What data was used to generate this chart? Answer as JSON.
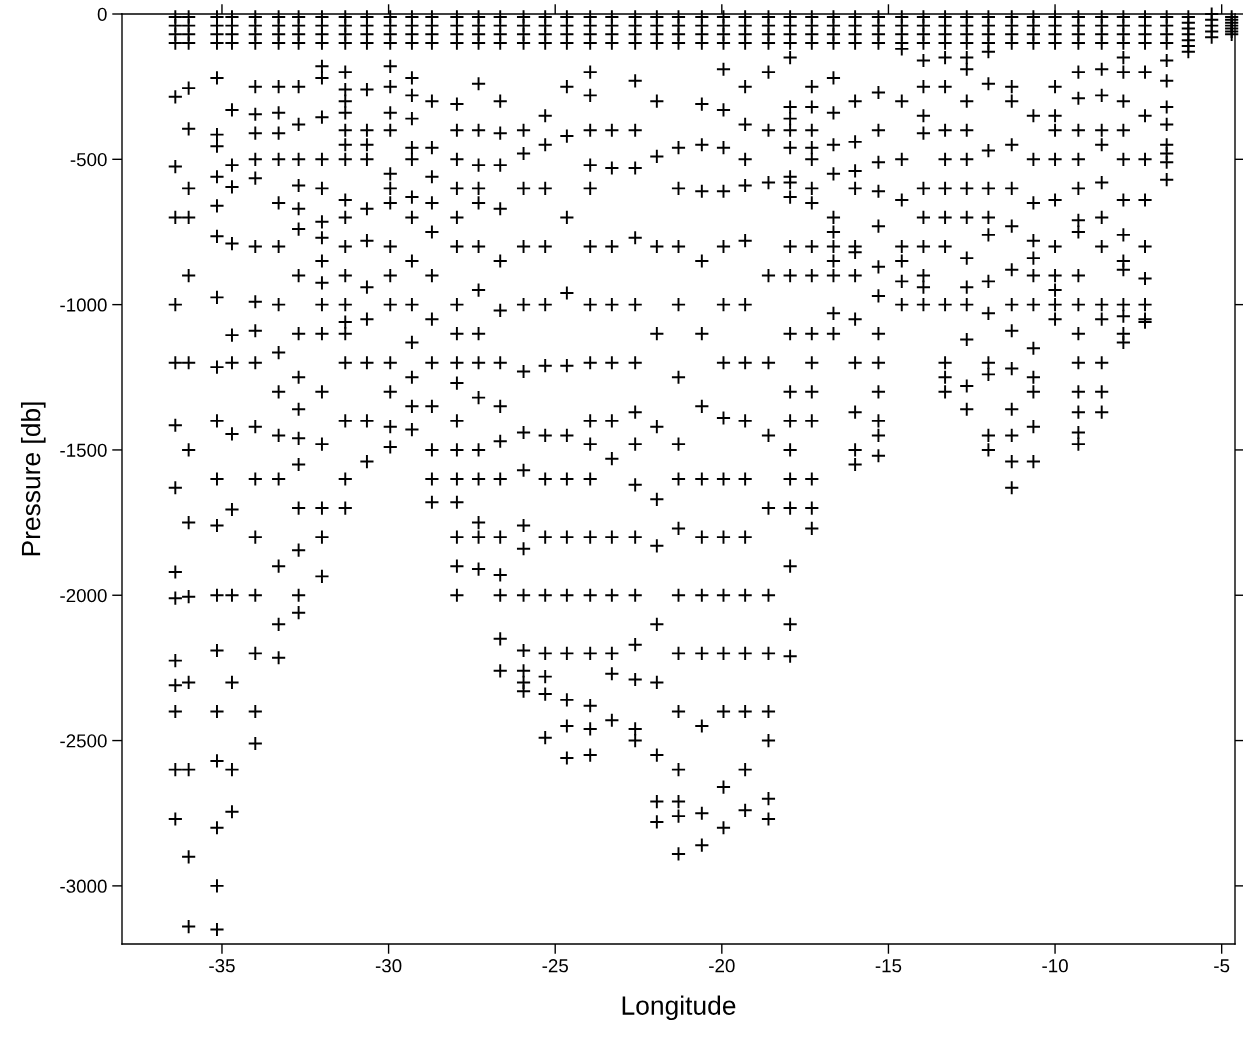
{
  "chart_data": {
    "type": "scatter",
    "xlabel": "Longitude",
    "ylabel": "Pressure [db]",
    "xlim": [
      -38,
      -4.6
    ],
    "ylim": [
      -3200,
      0
    ],
    "xticks": [
      -35,
      -30,
      -25,
      -20,
      -15,
      -10,
      -5
    ],
    "yticks": [
      0,
      -500,
      -1000,
      -1500,
      -2000,
      -2500,
      -3000
    ],
    "grid": false,
    "marker": "cross",
    "series": [
      {
        "color": "#000000",
        "x": [
          -36.4,
          -36.4,
          -36.4,
          -36.4,
          -36.4,
          -36.4,
          -36.4,
          -36.4,
          -36.4,
          -36.4,
          -36.4,
          -36.4,
          -36.4,
          -36.4,
          -36.4,
          -36.4,
          -36.4,
          -36.4
        ],
        "values": [
          -10,
          -40,
          -70,
          -100,
          -285,
          -525,
          -700,
          -1000,
          -1200,
          -1415,
          -1630,
          -1920,
          -2010,
          -2225,
          -2310,
          -2400,
          -2600,
          -2770
        ]
      },
      {
        "color": "#000000",
        "x": [
          -36.0,
          -36.0,
          -36.0,
          -36.0,
          -36.0,
          -36.0,
          -36.0,
          -36.0,
          -36.0,
          -36.0,
          -36.0,
          -36.0,
          -36.0,
          -36.0,
          -36.0,
          -36.0,
          -36.0
        ],
        "values": [
          -10,
          -40,
          -70,
          -100,
          -255,
          -395,
          -600,
          -700,
          -900,
          -1200,
          -1500,
          -1750,
          -2005,
          -2300,
          -2600,
          -2900,
          -3140
        ]
      },
      {
        "color": "#000000",
        "x": [
          -35.15,
          -35.15,
          -35.15,
          -35.15,
          -35.15,
          -35.15,
          -35.15,
          -35.15,
          -35.15,
          -35.15,
          -35.15,
          -35.15,
          -35.15,
          -35.15,
          -35.15,
          -35.15,
          -35.15,
          -35.15,
          -35.15,
          -35.15,
          -35.15,
          -35.15
        ],
        "values": [
          -10,
          -40,
          -70,
          -100,
          -220,
          -415,
          -455,
          -560,
          -660,
          -765,
          -975,
          -1215,
          -1400,
          -1600,
          -1760,
          -2000,
          -2190,
          -2400,
          -2570,
          -2800,
          -3000,
          -3150
        ]
      },
      {
        "color": "#000000",
        "x": [
          -34.7,
          -34.7,
          -34.7,
          -34.7,
          -34.7,
          -34.7,
          -34.7,
          -34.7,
          -34.7,
          -34.7,
          -34.7,
          -34.7,
          -34.7,
          -34.7,
          -34.7,
          -34.7
        ],
        "values": [
          -10,
          -40,
          -70,
          -100,
          -330,
          -520,
          -595,
          -790,
          -1105,
          -1200,
          -1445,
          -1705,
          -2000,
          -2300,
          -2600,
          -2745
        ]
      },
      {
        "color": "#000000",
        "x": [
          -34.0,
          -34.0,
          -34.0,
          -34.0,
          -34.0,
          -34.0,
          -34.0,
          -34.0,
          -34.0,
          -34.0,
          -34.0,
          -34.0,
          -34.0,
          -34.0,
          -34.0,
          -34.0,
          -34.0,
          -34.0,
          -34.0,
          -34.0
        ],
        "values": [
          -10,
          -40,
          -70,
          -100,
          -250,
          -345,
          -410,
          -500,
          -565,
          -800,
          -990,
          -1090,
          -1200,
          -1420,
          -1600,
          -1800,
          -2000,
          -2200,
          -2400,
          -2510
        ]
      },
      {
        "color": "#000000",
        "x": [
          -33.3,
          -33.3,
          -33.3,
          -33.3,
          -33.3,
          -33.3,
          -33.3,
          -33.3,
          -33.3,
          -33.3,
          -33.3,
          -33.3,
          -33.3,
          -33.3,
          -33.3,
          -33.3,
          -33.3,
          -33.3
        ],
        "values": [
          -10,
          -40,
          -70,
          -100,
          -250,
          -340,
          -410,
          -500,
          -650,
          -800,
          -1000,
          -1165,
          -1300,
          -1450,
          -1600,
          -1900,
          -2100,
          -2215
        ]
      },
      {
        "color": "#000000",
        "x": [
          -32.7,
          -32.7,
          -32.7,
          -32.7,
          -32.7,
          -32.7,
          -32.7,
          -32.7,
          -32.7,
          -32.7,
          -32.7,
          -32.7,
          -32.7,
          -32.7,
          -32.7,
          -32.7,
          -32.7,
          -32.7,
          -32.7,
          -32.7
        ],
        "values": [
          -10,
          -40,
          -70,
          -100,
          -250,
          -380,
          -500,
          -590,
          -670,
          -740,
          -900,
          -1100,
          -1250,
          -1360,
          -1460,
          -1550,
          -1700,
          -1845,
          -2000,
          -2060
        ]
      },
      {
        "color": "#000000",
        "x": [
          -32.0,
          -32.0,
          -32.0,
          -32.0,
          -32.0,
          -32.0,
          -32.0,
          -32.0,
          -32.0,
          -32.0,
          -32.0,
          -32.0,
          -32.0,
          -32.0,
          -32.0,
          -32.0,
          -32.0,
          -32.0,
          -32.0,
          -32.0
        ],
        "values": [
          -10,
          -40,
          -70,
          -100,
          -180,
          -220,
          -355,
          -500,
          -600,
          -715,
          -770,
          -850,
          -925,
          -1000,
          -1100,
          -1300,
          -1480,
          -1700,
          -1800,
          -1935
        ]
      },
      {
        "color": "#000000",
        "x": [
          -31.3,
          -31.3,
          -31.3,
          -31.3,
          -31.3,
          -31.3,
          -31.3,
          -31.3,
          -31.3,
          -31.3,
          -31.3,
          -31.3,
          -31.3,
          -31.3,
          -31.3,
          -31.3,
          -31.3,
          -31.3,
          -31.3,
          -31.3,
          -31.3,
          -31.3
        ],
        "values": [
          -10,
          -40,
          -70,
          -100,
          -200,
          -260,
          -300,
          -340,
          -400,
          -450,
          -500,
          -640,
          -700,
          -800,
          -900,
          -1000,
          -1060,
          -1100,
          -1200,
          -1400,
          -1600,
          -1700
        ]
      },
      {
        "color": "#000000",
        "x": [
          -30.65,
          -30.65,
          -30.65,
          -30.65,
          -30.65,
          -30.65,
          -30.65,
          -30.65,
          -30.65,
          -30.65,
          -30.65,
          -30.65,
          -30.65,
          -30.65,
          -30.65
        ],
        "values": [
          -10,
          -40,
          -70,
          -100,
          -260,
          -400,
          -450,
          -500,
          -670,
          -780,
          -940,
          -1050,
          -1200,
          -1400,
          -1540
        ]
      },
      {
        "color": "#000000",
        "x": [
          -29.95,
          -29.95,
          -29.95,
          -29.95,
          -29.95,
          -29.95,
          -29.95,
          -29.95,
          -29.95,
          -29.95,
          -29.95,
          -29.95,
          -29.95,
          -29.95,
          -29.95,
          -29.95,
          -29.95,
          -29.95
        ],
        "values": [
          -10,
          -40,
          -70,
          -100,
          -180,
          -250,
          -340,
          -400,
          -550,
          -600,
          -650,
          -800,
          -900,
          -1000,
          -1200,
          -1300,
          -1420,
          -1490
        ]
      },
      {
        "color": "#000000",
        "x": [
          -29.3,
          -29.3,
          -29.3,
          -29.3,
          -29.3,
          -29.3,
          -29.3,
          -29.3,
          -29.3,
          -29.3,
          -29.3,
          -29.3,
          -29.3,
          -29.3,
          -29.3,
          -29.3,
          -29.3
        ],
        "values": [
          -10,
          -40,
          -70,
          -100,
          -220,
          -280,
          -360,
          -460,
          -500,
          -630,
          -700,
          -850,
          -1000,
          -1130,
          -1250,
          -1350,
          -1430
        ]
      },
      {
        "color": "#000000",
        "x": [
          -28.7,
          -28.7,
          -28.7,
          -28.7,
          -28.7,
          -28.7,
          -28.7,
          -28.7,
          -28.7,
          -28.7,
          -28.7,
          -28.7,
          -28.7,
          -28.7,
          -28.7,
          -28.7
        ],
        "values": [
          -10,
          -40,
          -70,
          -100,
          -300,
          -460,
          -560,
          -650,
          -750,
          -900,
          -1050,
          -1200,
          -1350,
          -1500,
          -1600,
          -1680
        ]
      },
      {
        "color": "#000000",
        "x": [
          -27.95,
          -27.95,
          -27.95,
          -27.95,
          -27.95,
          -27.95,
          -27.95,
          -27.95,
          -27.95,
          -27.95,
          -27.95,
          -27.95,
          -27.95,
          -27.95,
          -27.95,
          -27.95,
          -27.95,
          -27.95,
          -27.95,
          -27.95,
          -27.95
        ],
        "values": [
          -10,
          -40,
          -70,
          -100,
          -310,
          -400,
          -500,
          -600,
          -700,
          -800,
          -1000,
          -1100,
          -1200,
          -1270,
          -1400,
          -1500,
          -1600,
          -1680,
          -1800,
          -1900,
          -2000
        ]
      },
      {
        "color": "#000000",
        "x": [
          -27.3,
          -27.3,
          -27.3,
          -27.3,
          -27.3,
          -27.3,
          -27.3,
          -27.3,
          -27.3,
          -27.3,
          -27.3,
          -27.3,
          -27.3,
          -27.3,
          -27.3,
          -27.3,
          -27.3,
          -27.3,
          -27.3
        ],
        "values": [
          -10,
          -40,
          -70,
          -100,
          -240,
          -400,
          -520,
          -600,
          -650,
          -800,
          -950,
          -1100,
          -1200,
          -1320,
          -1500,
          -1600,
          -1750,
          -1800,
          -1910
        ]
      },
      {
        "color": "#000000",
        "x": [
          -26.65,
          -26.65,
          -26.65,
          -26.65,
          -26.65,
          -26.65,
          -26.65,
          -26.65,
          -26.65,
          -26.65,
          -26.65,
          -26.65,
          -26.65,
          -26.65,
          -26.65,
          -26.65,
          -26.65,
          -26.65,
          -26.65
        ],
        "values": [
          -10,
          -40,
          -70,
          -100,
          -300,
          -410,
          -520,
          -670,
          -850,
          -1020,
          -1200,
          -1350,
          -1470,
          -1600,
          -1800,
          -1930,
          -2000,
          -2150,
          -2260
        ]
      },
      {
        "color": "#000000",
        "x": [
          -25.95,
          -25.95,
          -25.95,
          -25.95,
          -25.95,
          -25.95,
          -25.95,
          -25.95,
          -25.95,
          -25.95,
          -25.95,
          -25.95,
          -25.95,
          -25.95,
          -25.95,
          -25.95,
          -25.95,
          -25.95,
          -25.95
        ],
        "values": [
          -10,
          -40,
          -70,
          -100,
          -400,
          -480,
          -600,
          -800,
          -1000,
          -1230,
          -1440,
          -1570,
          -1760,
          -1840,
          -2000,
          -2190,
          -2260,
          -2300,
          -2330
        ]
      },
      {
        "color": "#000000",
        "x": [
          -25.3,
          -25.3,
          -25.3,
          -25.3,
          -25.3,
          -25.3,
          -25.3,
          -25.3,
          -25.3,
          -25.3,
          -25.3,
          -25.3,
          -25.3,
          -25.3,
          -25.3,
          -25.3,
          -25.3,
          -25.3
        ],
        "values": [
          -10,
          -40,
          -70,
          -100,
          -350,
          -450,
          -600,
          -800,
          -1000,
          -1210,
          -1450,
          -1600,
          -1800,
          -2000,
          -2200,
          -2280,
          -2340,
          -2490
        ]
      },
      {
        "color": "#000000",
        "x": [
          -24.65,
          -24.65,
          -24.65,
          -24.65,
          -24.65,
          -24.65,
          -24.65,
          -24.65,
          -24.65,
          -24.65,
          -24.65,
          -24.65,
          -24.65,
          -24.65,
          -24.65,
          -24.65,
          -24.65
        ],
        "values": [
          -10,
          -40,
          -70,
          -100,
          -250,
          -420,
          -700,
          -960,
          -1210,
          -1450,
          -1600,
          -1800,
          -2000,
          -2200,
          -2360,
          -2450,
          -2560
        ]
      },
      {
        "color": "#000000",
        "x": [
          -23.95,
          -23.95,
          -23.95,
          -23.95,
          -23.95,
          -23.95,
          -23.95,
          -23.95,
          -23.95,
          -23.95,
          -23.95,
          -23.95,
          -23.95,
          -23.95,
          -23.95,
          -23.95,
          -23.95,
          -23.95,
          -23.95,
          -23.95,
          -23.95
        ],
        "values": [
          -10,
          -40,
          -70,
          -100,
          -200,
          -280,
          -400,
          -520,
          -600,
          -800,
          -1000,
          -1200,
          -1400,
          -1480,
          -1600,
          -1800,
          -2000,
          -2200,
          -2380,
          -2460,
          -2550
        ]
      },
      {
        "color": "#000000",
        "x": [
          -23.3,
          -23.3,
          -23.3,
          -23.3,
          -23.3,
          -23.3,
          -23.3,
          -23.3,
          -23.3,
          -23.3,
          -23.3,
          -23.3,
          -23.3,
          -23.3,
          -23.3,
          -23.3
        ],
        "values": [
          -10,
          -40,
          -70,
          -100,
          -400,
          -530,
          -800,
          -1000,
          -1200,
          -1400,
          -1530,
          -1800,
          -2000,
          -2200,
          -2270,
          -2430
        ]
      },
      {
        "color": "#000000",
        "x": [
          -22.6,
          -22.6,
          -22.6,
          -22.6,
          -22.6,
          -22.6,
          -22.6,
          -22.6,
          -22.6,
          -22.6,
          -22.6,
          -22.6,
          -22.6,
          -22.6,
          -22.6,
          -22.6,
          -22.6,
          -22.6,
          -22.6
        ],
        "values": [
          -10,
          -40,
          -70,
          -100,
          -230,
          -400,
          -530,
          -770,
          -1000,
          -1200,
          -1370,
          -1480,
          -1620,
          -1800,
          -2000,
          -2170,
          -2290,
          -2460,
          -2500
        ]
      },
      {
        "color": "#000000",
        "x": [
          -21.95,
          -21.95,
          -21.95,
          -21.95,
          -21.95,
          -21.95,
          -21.95,
          -21.95,
          -21.95,
          -21.95,
          -21.95,
          -21.95,
          -21.95,
          -21.95,
          -21.95,
          -21.95
        ],
        "values": [
          -10,
          -40,
          -70,
          -100,
          -300,
          -490,
          -800,
          -1100,
          -1420,
          -1670,
          -1830,
          -2100,
          -2300,
          -2550,
          -2710,
          -2780
        ]
      },
      {
        "color": "#000000",
        "x": [
          -21.3,
          -21.3,
          -21.3,
          -21.3,
          -21.3,
          -21.3,
          -21.3,
          -21.3,
          -21.3,
          -21.3,
          -21.3,
          -21.3,
          -21.3,
          -21.3,
          -21.3,
          -21.3,
          -21.3,
          -21.3,
          -21.3
        ],
        "values": [
          -10,
          -40,
          -70,
          -100,
          -460,
          -600,
          -800,
          -1000,
          -1250,
          -1480,
          -1600,
          -1770,
          -2000,
          -2200,
          -2400,
          -2600,
          -2710,
          -2760,
          -2890
        ]
      },
      {
        "color": "#000000",
        "x": [
          -20.6,
          -20.6,
          -20.6,
          -20.6,
          -20.6,
          -20.6,
          -20.6,
          -20.6,
          -20.6,
          -20.6,
          -20.6,
          -20.6,
          -20.6,
          -20.6,
          -20.6,
          -20.6,
          -20.6
        ],
        "values": [
          -10,
          -40,
          -70,
          -100,
          -310,
          -450,
          -610,
          -850,
          -1100,
          -1350,
          -1600,
          -1800,
          -2000,
          -2200,
          -2450,
          -2750,
          -2860
        ]
      },
      {
        "color": "#000000",
        "x": [
          -19.95,
          -19.95,
          -19.95,
          -19.95,
          -19.95,
          -19.95,
          -19.95,
          -19.95,
          -19.95,
          -19.95,
          -19.95,
          -19.95,
          -19.95,
          -19.95,
          -19.95,
          -19.95,
          -19.95,
          -19.95,
          -19.95
        ],
        "values": [
          -10,
          -40,
          -70,
          -100,
          -190,
          -330,
          -460,
          -610,
          -800,
          -1000,
          -1200,
          -1390,
          -1600,
          -1800,
          -2000,
          -2200,
          -2400,
          -2660,
          -2800
        ]
      },
      {
        "color": "#000000",
        "x": [
          -19.3,
          -19.3,
          -19.3,
          -19.3,
          -19.3,
          -19.3,
          -19.3,
          -19.3,
          -19.3,
          -19.3,
          -19.3,
          -19.3,
          -19.3,
          -19.3,
          -19.3,
          -19.3,
          -19.3,
          -19.3,
          -19.3
        ],
        "values": [
          -10,
          -40,
          -70,
          -100,
          -250,
          -380,
          -500,
          -590,
          -780,
          -1000,
          -1200,
          -1400,
          -1600,
          -1800,
          -2000,
          -2200,
          -2400,
          -2600,
          -2740
        ]
      },
      {
        "color": "#000000",
        "x": [
          -18.6,
          -18.6,
          -18.6,
          -18.6,
          -18.6,
          -18.6,
          -18.6,
          -18.6,
          -18.6,
          -18.6,
          -18.6,
          -18.6,
          -18.6,
          -18.6,
          -18.6,
          -18.6,
          -18.6
        ],
        "values": [
          -10,
          -40,
          -70,
          -100,
          -200,
          -400,
          -580,
          -900,
          -1200,
          -1450,
          -1700,
          -2000,
          -2200,
          -2400,
          -2500,
          -2700,
          -2770
        ]
      },
      {
        "color": "#000000",
        "x": [
          -17.95,
          -17.95,
          -17.95,
          -17.95,
          -17.95,
          -17.95,
          -17.95,
          -17.95,
          -17.95,
          -17.95,
          -17.95,
          -17.95,
          -17.95,
          -17.95,
          -17.95,
          -17.95,
          -17.95,
          -17.95,
          -17.95,
          -17.95,
          -17.95,
          -17.95,
          -17.95
        ],
        "values": [
          -10,
          -40,
          -70,
          -100,
          -150,
          -320,
          -360,
          -400,
          -460,
          -560,
          -580,
          -630,
          -800,
          -900,
          -1100,
          -1300,
          -1400,
          -1500,
          -1600,
          -1700,
          -1900,
          -2100,
          -2210
        ]
      },
      {
        "color": "#000000",
        "x": [
          -17.3,
          -17.3,
          -17.3,
          -17.3,
          -17.3,
          -17.3,
          -17.3,
          -17.3,
          -17.3,
          -17.3,
          -17.3,
          -17.3,
          -17.3,
          -17.3,
          -17.3,
          -17.3,
          -17.3,
          -17.3,
          -17.3,
          -17.3
        ],
        "values": [
          -10,
          -40,
          -70,
          -100,
          -250,
          -320,
          -400,
          -460,
          -500,
          -600,
          -650,
          -800,
          -900,
          -1100,
          -1200,
          -1300,
          -1400,
          -1600,
          -1700,
          -1770
        ]
      },
      {
        "color": "#000000",
        "x": [
          -16.65,
          -16.65,
          -16.65,
          -16.65,
          -16.65,
          -16.65,
          -16.65,
          -16.65,
          -16.65,
          -16.65,
          -16.65,
          -16.65,
          -16.65,
          -16.65,
          -16.65
        ],
        "values": [
          -10,
          -40,
          -70,
          -100,
          -220,
          -340,
          -450,
          -550,
          -700,
          -750,
          -800,
          -850,
          -900,
          -1030,
          -1100
        ]
      },
      {
        "color": "#000000",
        "x": [
          -16.0,
          -16.0,
          -16.0,
          -16.0,
          -16.0,
          -16.0,
          -16.0,
          -16.0,
          -16.0,
          -16.0,
          -16.0,
          -16.0,
          -16.0,
          -16.0,
          -16.0,
          -16.0
        ],
        "values": [
          -10,
          -40,
          -70,
          -100,
          -300,
          -440,
          -540,
          -600,
          -800,
          -820,
          -900,
          -1050,
          -1200,
          -1370,
          -1500,
          -1550
        ]
      },
      {
        "color": "#000000",
        "x": [
          -15.3,
          -15.3,
          -15.3,
          -15.3,
          -15.3,
          -15.3,
          -15.3,
          -15.3,
          -15.3,
          -15.3,
          -15.3,
          -15.3,
          -15.3,
          -15.3,
          -15.3,
          -15.3,
          -15.3
        ],
        "values": [
          -10,
          -40,
          -70,
          -100,
          -270,
          -400,
          -510,
          -610,
          -730,
          -870,
          -970,
          -1100,
          -1200,
          -1300,
          -1400,
          -1450,
          -1520
        ]
      },
      {
        "color": "#000000",
        "x": [
          -14.6,
          -14.6,
          -14.6,
          -14.6,
          -14.6,
          -14.6,
          -14.6,
          -14.6,
          -14.6,
          -14.6,
          -14.6,
          -14.6
        ],
        "values": [
          -10,
          -40,
          -70,
          -100,
          -120,
          -300,
          -500,
          -640,
          -800,
          -850,
          -920,
          -1000
        ]
      },
      {
        "color": "#000000",
        "x": [
          -13.95,
          -13.95,
          -13.95,
          -13.95,
          -13.95,
          -13.95,
          -13.95,
          -13.95,
          -13.95,
          -13.95,
          -13.95,
          -13.95,
          -13.95,
          -13.95
        ],
        "values": [
          -10,
          -40,
          -70,
          -100,
          -160,
          -250,
          -350,
          -410,
          -600,
          -700,
          -800,
          -900,
          -940,
          -1000
        ]
      },
      {
        "color": "#000000",
        "x": [
          -13.3,
          -13.3,
          -13.3,
          -13.3,
          -13.3,
          -13.3,
          -13.3,
          -13.3,
          -13.3,
          -13.3,
          -13.3,
          -13.3,
          -13.3,
          -13.3,
          -13.3
        ],
        "values": [
          -10,
          -40,
          -70,
          -100,
          -150,
          -250,
          -400,
          -500,
          -600,
          -700,
          -800,
          -1000,
          -1200,
          -1250,
          -1300
        ]
      },
      {
        "color": "#000000",
        "x": [
          -12.65,
          -12.65,
          -12.65,
          -12.65,
          -12.65,
          -12.65,
          -12.65,
          -12.65,
          -12.65,
          -12.65,
          -12.65,
          -12.65,
          -12.65,
          -12.65,
          -12.65,
          -12.65,
          -12.65
        ],
        "values": [
          -10,
          -40,
          -70,
          -100,
          -150,
          -190,
          -300,
          -400,
          -500,
          -600,
          -700,
          -840,
          -940,
          -1000,
          -1120,
          -1280,
          -1360
        ]
      },
      {
        "color": "#000000",
        "x": [
          -12.0,
          -12.0,
          -12.0,
          -12.0,
          -12.0,
          -12.0,
          -12.0,
          -12.0,
          -12.0,
          -12.0,
          -12.0,
          -12.0,
          -12.0,
          -12.0,
          -12.0,
          -12.0
        ],
        "values": [
          -10,
          -40,
          -70,
          -100,
          -130,
          -240,
          -470,
          -600,
          -700,
          -760,
          -920,
          -1030,
          -1200,
          -1240,
          -1450,
          -1500
        ]
      },
      {
        "color": "#000000",
        "x": [
          -11.3,
          -11.3,
          -11.3,
          -11.3,
          -11.3,
          -11.3,
          -11.3,
          -11.3,
          -11.3,
          -11.3,
          -11.3,
          -11.3,
          -11.3,
          -11.3,
          -11.3,
          -11.3,
          -11.3
        ],
        "values": [
          -10,
          -40,
          -70,
          -100,
          -250,
          -300,
          -450,
          -600,
          -730,
          -880,
          -1000,
          -1090,
          -1220,
          -1360,
          -1450,
          -1540,
          -1630
        ]
      },
      {
        "color": "#000000",
        "x": [
          -10.65,
          -10.65,
          -10.65,
          -10.65,
          -10.65,
          -10.65,
          -10.65,
          -10.65,
          -10.65,
          -10.65,
          -10.65,
          -10.65,
          -10.65,
          -10.65,
          -10.65,
          -10.65
        ],
        "values": [
          -10,
          -40,
          -70,
          -100,
          -350,
          -500,
          -650,
          -780,
          -840,
          -900,
          -1000,
          -1150,
          -1250,
          -1300,
          -1420,
          -1540
        ]
      },
      {
        "color": "#000000",
        "x": [
          -10.0,
          -10.0,
          -10.0,
          -10.0,
          -10.0,
          -10.0,
          -10.0,
          -10.0,
          -10.0,
          -10.0,
          -10.0,
          -10.0,
          -10.0,
          -10.0
        ],
        "values": [
          -10,
          -40,
          -70,
          -100,
          -250,
          -350,
          -400,
          -500,
          -640,
          -800,
          -900,
          -950,
          -1000,
          -1050
        ]
      },
      {
        "color": "#000000",
        "x": [
          -9.3,
          -9.3,
          -9.3,
          -9.3,
          -9.3,
          -9.3,
          -9.3,
          -9.3,
          -9.3,
          -9.3,
          -9.3,
          -9.3,
          -9.3,
          -9.3,
          -9.3,
          -9.3,
          -9.3,
          -9.3,
          -9.3
        ],
        "values": [
          -10,
          -40,
          -70,
          -100,
          -200,
          -290,
          -400,
          -500,
          -600,
          -710,
          -750,
          -900,
          -1000,
          -1100,
          -1200,
          -1300,
          -1370,
          -1440,
          -1480
        ]
      },
      {
        "color": "#000000",
        "x": [
          -8.6,
          -8.6,
          -8.6,
          -8.6,
          -8.6,
          -8.6,
          -8.6,
          -8.6,
          -8.6,
          -8.6,
          -8.6,
          -8.6,
          -8.6,
          -8.6,
          -8.6,
          -8.6
        ],
        "values": [
          -10,
          -40,
          -70,
          -100,
          -190,
          -280,
          -400,
          -450,
          -580,
          -700,
          -800,
          -1000,
          -1050,
          -1200,
          -1300,
          -1370
        ]
      },
      {
        "color": "#000000",
        "x": [
          -7.95,
          -7.95,
          -7.95,
          -7.95,
          -7.95,
          -7.95,
          -7.95,
          -7.95,
          -7.95,
          -7.95,
          -7.95,
          -7.95,
          -7.95,
          -7.95,
          -7.95,
          -7.95,
          -7.95
        ],
        "values": [
          -10,
          -40,
          -70,
          -100,
          -150,
          -200,
          -300,
          -400,
          -500,
          -640,
          -760,
          -850,
          -880,
          -1000,
          -1040,
          -1100,
          -1130
        ]
      },
      {
        "color": "#000000",
        "x": [
          -7.3,
          -7.3,
          -7.3,
          -7.3,
          -7.3,
          -7.3,
          -7.3,
          -7.3,
          -7.3,
          -7.3,
          -7.3,
          -7.3,
          -7.3
        ],
        "values": [
          -10,
          -40,
          -70,
          -100,
          -200,
          -350,
          -500,
          -640,
          -800,
          -910,
          -1000,
          -1050,
          -1060
        ]
      },
      {
        "color": "#000000",
        "x": [
          -6.65,
          -6.65,
          -6.65,
          -6.65,
          -6.65,
          -6.65,
          -6.65,
          -6.65,
          -6.65,
          -6.65,
          -6.65,
          -6.65
        ],
        "values": [
          -10,
          -40,
          -70,
          -100,
          -160,
          -230,
          -320,
          -380,
          -450,
          -480,
          -510,
          -570
        ]
      },
      {
        "color": "#000000",
        "x": [
          -6.0,
          -6.0,
          -6.0,
          -6.0,
          -6.0,
          -6.0,
          -6.0
        ],
        "values": [
          -10,
          -30,
          -50,
          -70,
          -90,
          -110,
          -130
        ]
      },
      {
        "color": "#000000",
        "x": [
          -5.3,
          -5.3,
          -5.3,
          -5.3,
          -5.3
        ],
        "values": [
          0,
          -20,
          -40,
          -60,
          -80
        ]
      },
      {
        "color": "#000000",
        "x": [
          -4.7,
          -4.7,
          -4.7,
          -4.7,
          -4.7,
          -4.7,
          -4.7
        ],
        "values": [
          -10,
          -20,
          -30,
          -40,
          -50,
          -60,
          -70
        ]
      }
    ]
  }
}
